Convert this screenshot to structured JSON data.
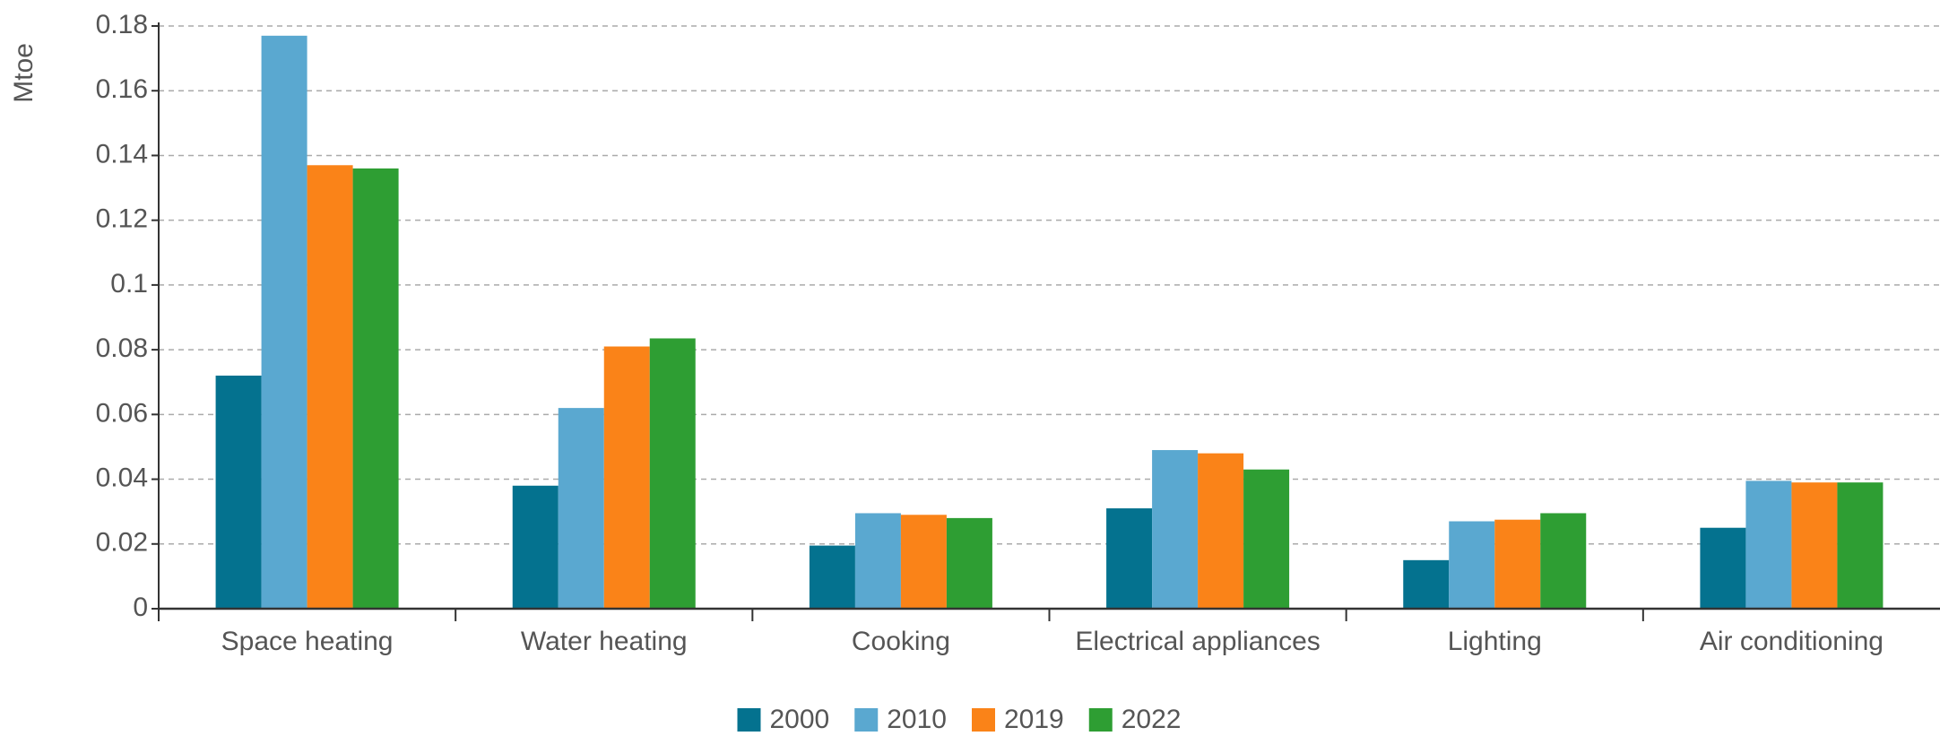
{
  "chart_data": {
    "type": "bar",
    "y_label": "Mtoe",
    "categories": [
      "Space heating",
      "Water heating",
      "Cooking",
      "Electrical appliances",
      "Lighting",
      "Air conditioning"
    ],
    "series": [
      {
        "name": "2000",
        "color": "#04728f",
        "values": [
          0.072,
          0.038,
          0.0195,
          0.031,
          0.015,
          0.025
        ]
      },
      {
        "name": "2010",
        "color": "#5aa8d0",
        "values": [
          0.177,
          0.062,
          0.0295,
          0.049,
          0.027,
          0.0395
        ]
      },
      {
        "name": "2019",
        "color": "#fa8318",
        "values": [
          0.137,
          0.081,
          0.029,
          0.048,
          0.0275,
          0.039
        ]
      },
      {
        "name": "2022",
        "color": "#2e9e33",
        "values": [
          0.136,
          0.0835,
          0.028,
          0.043,
          0.0295,
          0.039
        ]
      }
    ],
    "ylim": [
      0,
      0.18
    ],
    "yticks": [
      0,
      0.02,
      0.04,
      0.06,
      0.08,
      0.1,
      0.12,
      0.14,
      0.16,
      0.18
    ],
    "grid": true
  }
}
